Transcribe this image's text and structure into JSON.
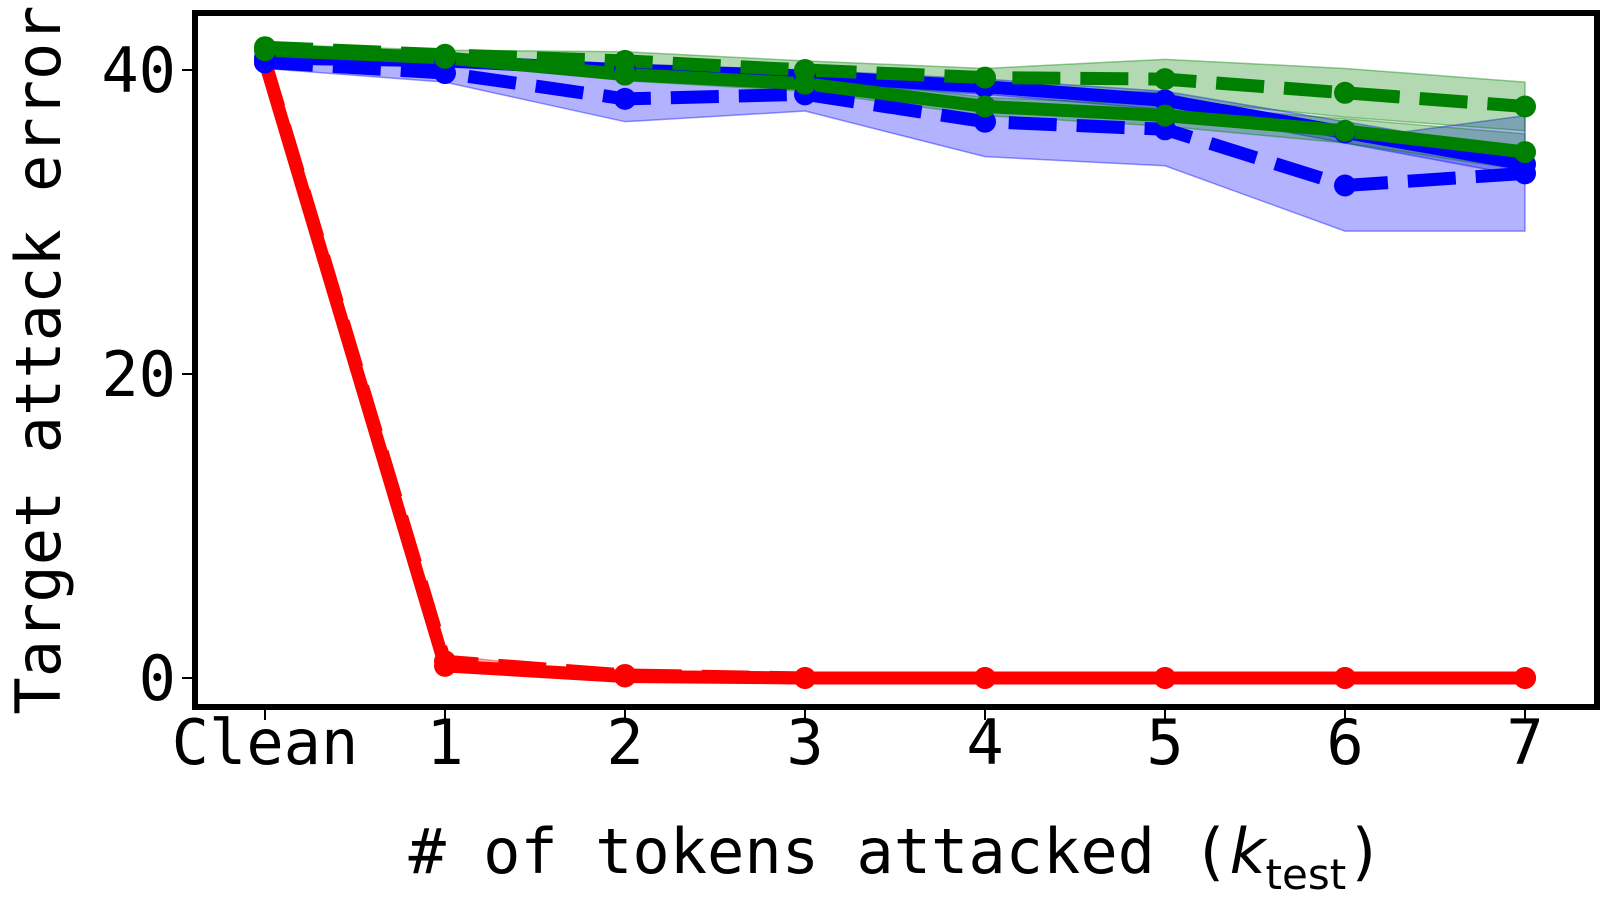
{
  "chart_data": {
    "type": "line",
    "title": "",
    "xlabel_main": "# of tokens attacked (",
    "xlabel_var": "k",
    "xlabel_sub": "test",
    "xlabel_end": ")",
    "ylabel": "Target attack error",
    "categories": [
      "Clean",
      "1",
      "2",
      "3",
      "4",
      "5",
      "6",
      "7"
    ],
    "x": [
      0,
      1,
      2,
      3,
      4,
      5,
      6,
      7
    ],
    "yticks": [
      0,
      20,
      40
    ],
    "ylim": [
      -2,
      44
    ],
    "grid": false,
    "series": [
      {
        "color": "#ff0000",
        "style": "solid",
        "values": [
          40.5,
          0.8,
          0.1,
          0.0,
          0.0,
          0.0,
          0.0,
          0.0
        ],
        "band": [
          0,
          0,
          0,
          0,
          0,
          0,
          0,
          0
        ]
      },
      {
        "color": "#ff0000",
        "style": "dashed",
        "values": [
          40.6,
          1.1,
          0.2,
          0.0,
          0.0,
          0.0,
          0.0,
          0.0
        ],
        "band": [
          0,
          0.4,
          0,
          0,
          0,
          0,
          0,
          0
        ]
      },
      {
        "color": "#0000ff",
        "style": "solid",
        "values": [
          40.8,
          40.6,
          40.0,
          39.6,
          38.9,
          38.0,
          35.9,
          33.8
        ],
        "band": [
          0.2,
          0.3,
          0.4,
          0.4,
          0.5,
          0.6,
          0.7,
          0.8
        ]
      },
      {
        "color": "#0000ff",
        "style": "dashed",
        "values": [
          40.5,
          39.8,
          38.1,
          38.4,
          36.6,
          36.1,
          32.4,
          33.2
        ],
        "band": [
          0.4,
          0.6,
          1.5,
          1.1,
          2.3,
          2.4,
          3.0,
          3.8
        ]
      },
      {
        "color": "#008000",
        "style": "solid",
        "values": [
          41.3,
          40.8,
          39.7,
          39.1,
          37.6,
          37.0,
          36.0,
          34.6
        ],
        "band": [
          0.2,
          0.3,
          0.4,
          0.5,
          0.6,
          0.7,
          0.8,
          1.2
        ]
      },
      {
        "color": "#008000",
        "style": "dashed",
        "values": [
          41.5,
          41.0,
          40.6,
          40.0,
          39.5,
          39.4,
          38.5,
          37.6
        ],
        "band": [
          0.2,
          0.3,
          0.6,
          0.6,
          0.6,
          1.3,
          1.6,
          1.6
        ]
      }
    ]
  }
}
